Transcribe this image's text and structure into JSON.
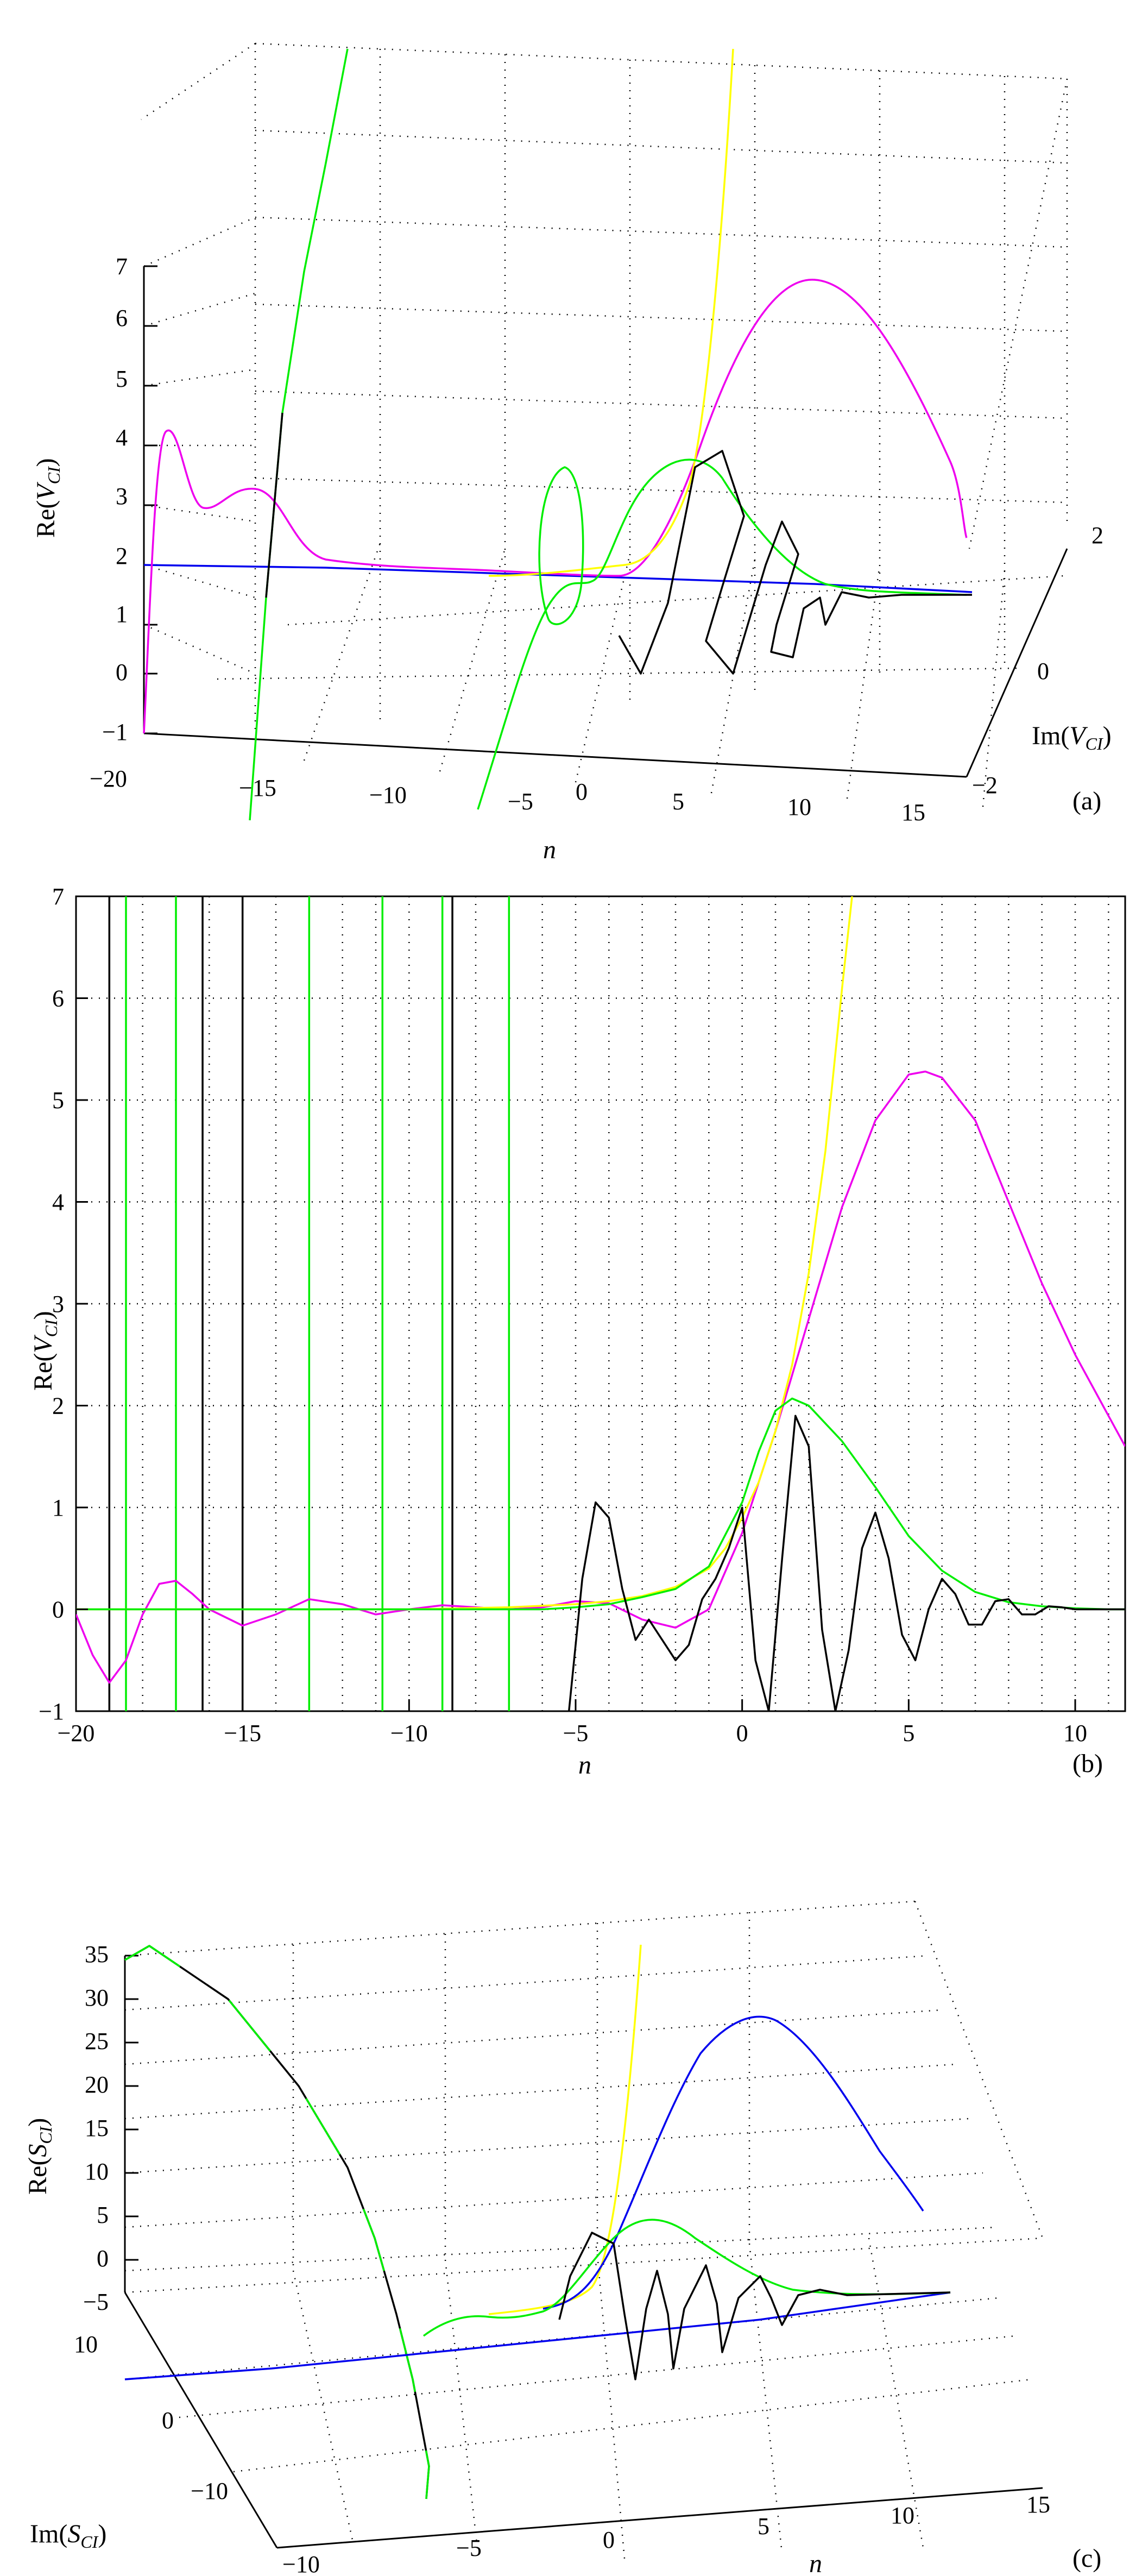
{
  "colors": {
    "magenta": "#ee00ee",
    "green": "#00ee00",
    "black": "#000000",
    "yellow": "#ffff00",
    "blue": "#0000ee"
  },
  "chart_data": [
    {
      "panel_label": "(a)",
      "type": "line",
      "projection": "3d",
      "title": "",
      "xlabel_var": "n",
      "ylabel_fn": "Im(",
      "ylabel_var": "V",
      "ylabel_sub": "CI",
      "ylabel_close": ")",
      "zlabel_fn": "Re(",
      "zlabel_var": "V",
      "zlabel_sub": "CI",
      "zlabel_close": ")",
      "xlim": [
        -20,
        15
      ],
      "ylim": [
        -2,
        2
      ],
      "zlim": [
        -1,
        7
      ],
      "x_ticks": [
        "−20",
        "−15",
        "−10",
        "−5",
        "0",
        "5",
        "10",
        "15"
      ],
      "y_ticks": [
        "−2",
        "0",
        "2"
      ],
      "z_ticks": [
        "−1",
        "0",
        "1",
        "2",
        "3",
        "4",
        "5",
        "6",
        "7"
      ],
      "grid": true
    },
    {
      "panel_label": "(b)",
      "type": "line",
      "title": "",
      "xlabel_var": "n",
      "ylabel_fn": "Re(",
      "ylabel_var": "V",
      "ylabel_sub": "CI",
      "ylabel_close": ")",
      "xlim": [
        -20,
        11.5
      ],
      "ylim": [
        -1,
        7
      ],
      "x_ticks": [
        "−20",
        "−15",
        "−10",
        "−5",
        "0",
        "5",
        "10"
      ],
      "y_ticks": [
        "−1",
        "0",
        "1",
        "2",
        "3",
        "4",
        "5",
        "6",
        "7"
      ],
      "grid": true,
      "series": [
        {
          "color_key": "magenta",
          "x": [
            -20,
            -19.5,
            -19,
            -18.5,
            -18,
            -17.5,
            -17,
            -16.5,
            -16,
            -15,
            -14,
            -13,
            -12,
            -11,
            -10,
            -9,
            -8,
            -7,
            -6,
            -5,
            -4,
            -3,
            -2,
            -1,
            0,
            0.5,
            1,
            1.5,
            2,
            3,
            4,
            5,
            5.5,
            6,
            7,
            8,
            9,
            10,
            11,
            11.5
          ],
          "y": [
            -0.05,
            -0.45,
            -0.72,
            -0.5,
            -0.05,
            0.25,
            0.28,
            0.15,
            0.0,
            -0.16,
            -0.05,
            0.1,
            0.05,
            -0.05,
            0.0,
            0.04,
            0.02,
            0.0,
            0.02,
            0.08,
            0.06,
            -0.1,
            -0.18,
            0.0,
            0.75,
            1.25,
            1.75,
            2.3,
            2.85,
            3.95,
            4.8,
            5.25,
            5.28,
            5.22,
            4.8,
            4.0,
            3.2,
            2.5,
            1.9,
            1.6
          ]
        },
        {
          "color_key": "yellow",
          "x": [
            -20,
            -15,
            -10,
            -7,
            -5,
            -4,
            -3,
            -2,
            -1,
            -0.5,
            0,
            0.5,
            1,
            1.5,
            2,
            2.5,
            3,
            3.3
          ],
          "y": [
            0.0,
            0.0,
            0.0,
            0.02,
            0.05,
            0.08,
            0.13,
            0.22,
            0.4,
            0.6,
            0.9,
            1.25,
            1.75,
            2.4,
            3.3,
            4.5,
            6.1,
            7.0
          ]
        },
        {
          "color_key": "green",
          "x": [
            -20,
            -15,
            -10,
            -7,
            -6,
            -5,
            -4,
            -3,
            -2,
            -1,
            0,
            0.5,
            1,
            1.5,
            2,
            3,
            4,
            5,
            6,
            7,
            8,
            9,
            10,
            11,
            11.5
          ],
          "y": [
            0.0,
            0.0,
            0.0,
            0.0,
            0.0,
            0.02,
            0.05,
            0.12,
            0.2,
            0.42,
            1.05,
            1.55,
            1.95,
            2.07,
            2.0,
            1.65,
            1.2,
            0.72,
            0.38,
            0.17,
            0.07,
            0.03,
            0.01,
            0.0,
            0.0
          ]
        },
        {
          "color_key": "black",
          "x": [
            -5.2,
            -4.8,
            -4.4,
            -4.0,
            -3.6,
            -3.2,
            -2.8,
            -2.4,
            -2.0,
            -1.6,
            -1.2,
            -0.8,
            -0.4,
            0.0,
            0.4,
            0.8,
            1.2,
            1.6,
            2.0,
            2.4,
            2.8,
            3.2,
            3.6,
            4.0,
            4.4,
            4.8,
            5.2,
            5.6,
            6.0,
            6.4,
            6.8,
            7.2,
            7.6,
            8.0,
            8.4,
            8.8,
            9.2,
            9.6,
            10.0,
            10.5,
            11.0,
            11.5
          ],
          "y": [
            -1.0,
            0.3,
            1.05,
            0.9,
            0.2,
            -0.3,
            -0.1,
            -0.3,
            -0.5,
            -0.35,
            0.1,
            0.3,
            0.6,
            1.0,
            -0.5,
            -1.0,
            0.5,
            1.9,
            1.6,
            -0.2,
            -1.0,
            -0.4,
            0.6,
            0.95,
            0.5,
            -0.25,
            -0.5,
            0.0,
            0.3,
            0.15,
            -0.15,
            -0.15,
            0.08,
            0.1,
            -0.05,
            -0.05,
            0.03,
            0.02,
            0.0,
            0.0,
            0.0,
            0.0
          ]
        }
      ],
      "vertical_lines": [
        {
          "x": -19.0,
          "color_key": "black"
        },
        {
          "x": -18.5,
          "color_key": "green"
        },
        {
          "x": -17.0,
          "color_key": "green"
        },
        {
          "x": -16.2,
          "color_key": "black"
        },
        {
          "x": -15.0,
          "color_key": "black"
        },
        {
          "x": -13.0,
          "color_key": "green"
        },
        {
          "x": -10.8,
          "color_key": "green"
        },
        {
          "x": -9.0,
          "color_key": "green"
        },
        {
          "x": -8.7,
          "color_key": "black"
        },
        {
          "x": -7.0,
          "color_key": "green"
        }
      ]
    },
    {
      "panel_label": "(c)",
      "type": "line",
      "projection": "3d",
      "title": "",
      "xlabel_var": "n",
      "ylabel_fn": "Im(",
      "ylabel_var": "S",
      "ylabel_sub": "CI",
      "ylabel_close": ")",
      "zlabel_fn": "Re(",
      "zlabel_var": "S",
      "zlabel_sub": "CI",
      "zlabel_close": ")",
      "xlim": [
        -10,
        15
      ],
      "ylim": [
        -15,
        15
      ],
      "zlim": [
        -5,
        35
      ],
      "x_ticks": [
        "−10",
        "−5",
        "0",
        "5",
        "10",
        "15"
      ],
      "y_ticks": [
        "10",
        "0",
        "−10"
      ],
      "z_ticks": [
        "35",
        "30",
        "25",
        "20",
        "15",
        "10",
        "5",
        "0",
        "−5"
      ],
      "grid": true
    }
  ]
}
